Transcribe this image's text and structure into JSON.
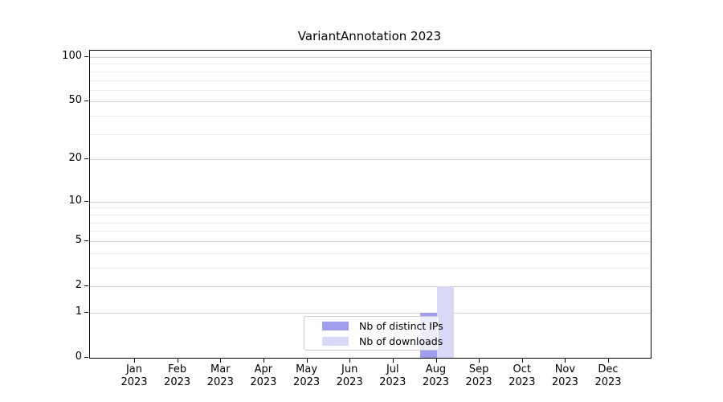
{
  "chart_data": {
    "type": "bar",
    "title": "VariantAnnotation 2023",
    "x": {
      "months": [
        "Jan",
        "Feb",
        "Mar",
        "Apr",
        "May",
        "Jun",
        "Jul",
        "Aug",
        "Sep",
        "Oct",
        "Nov",
        "Dec"
      ],
      "year": "2023"
    },
    "y_axis": {
      "scale": "log1p",
      "major_ticks": [
        0,
        1,
        2,
        5,
        10,
        20,
        50,
        100
      ],
      "minor_ticks": [
        3,
        4,
        6,
        7,
        8,
        9,
        30,
        40,
        60,
        70,
        80,
        90
      ],
      "ylim": [
        0,
        110
      ]
    },
    "series": [
      {
        "name": "Nb of distinct IPs",
        "color": "#9e9eec",
        "values": [
          0,
          0,
          0,
          0,
          0,
          0,
          0,
          1,
          0,
          0,
          0,
          0
        ]
      },
      {
        "name": "Nb of downloads",
        "color": "#d9d9f7",
        "values": [
          0,
          0,
          0,
          0,
          0,
          0,
          0,
          2,
          0,
          0,
          0,
          0
        ]
      }
    ],
    "grid": "horizontal-only",
    "legend_position": "lower-center"
  },
  "colors": {
    "axis": "#000000",
    "major_grid": "#d2d2d2",
    "minor_grid": "#ededed",
    "legend_border": "#cccccc",
    "text": "#000000"
  }
}
